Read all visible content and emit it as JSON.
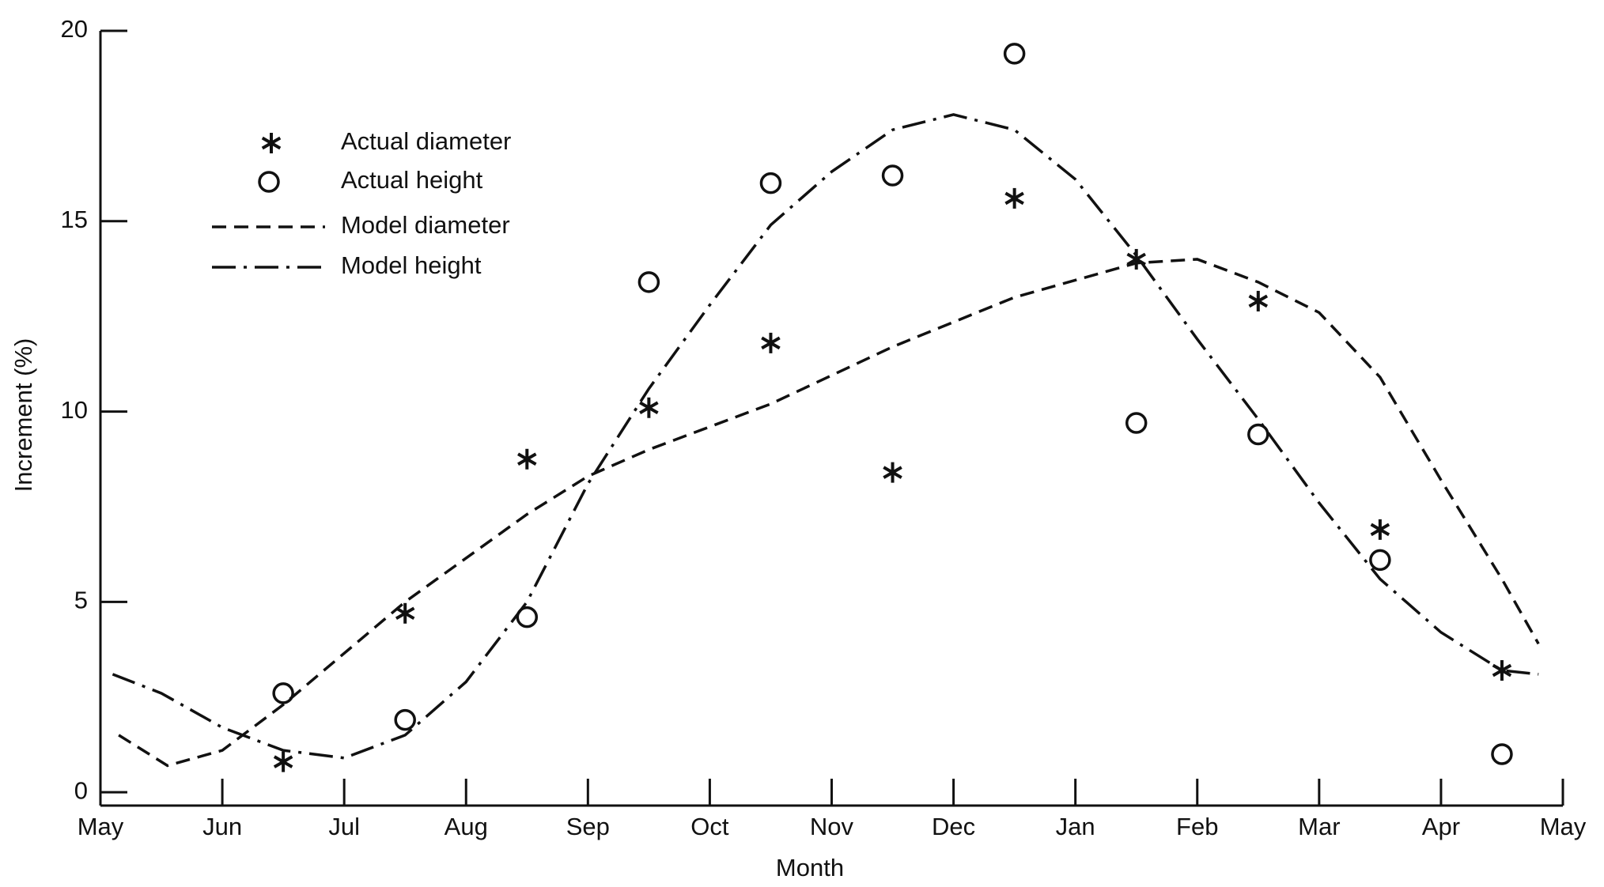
{
  "chart_data": {
    "type": "scatter-line",
    "x_label": "Month",
    "y_label": "Increment (%)",
    "xlim": [
      0,
      12
    ],
    "ylim": [
      -0.35,
      20
    ],
    "xticks": [
      {
        "value": 0,
        "label": "May"
      },
      {
        "value": 1,
        "label": "Jun"
      },
      {
        "value": 2,
        "label": "Jul"
      },
      {
        "value": 3,
        "label": "Aug"
      },
      {
        "value": 4,
        "label": "Sep"
      },
      {
        "value": 5,
        "label": "Oct"
      },
      {
        "value": 6,
        "label": "Nov"
      },
      {
        "value": 7,
        "label": "Dec"
      },
      {
        "value": 8,
        "label": "Jan"
      },
      {
        "value": 9,
        "label": "Feb"
      },
      {
        "value": 10,
        "label": "Mar"
      },
      {
        "value": 11,
        "label": "Apr"
      },
      {
        "value": 12,
        "label": "May"
      }
    ],
    "yticks": [
      0,
      5,
      10,
      15,
      20
    ],
    "series": [
      {
        "name": "Actual diameter",
        "marker": "star",
        "color": "#111111",
        "x": [
          1.5,
          2.5,
          3.5,
          4.5,
          5.5,
          6.5,
          7.5,
          8.5,
          9.5,
          10.5,
          11.5
        ],
        "values": [
          0.8,
          4.7,
          8.75,
          10.1,
          11.8,
          8.4,
          15.6,
          14.0,
          12.9,
          6.9,
          3.2
        ]
      },
      {
        "name": "Actual height",
        "marker": "circle",
        "color": "#111111",
        "x": [
          1.5,
          2.5,
          3.5,
          4.5,
          5.5,
          6.5,
          7.5,
          8.5,
          9.5,
          10.5,
          11.5
        ],
        "values": [
          2.6,
          1.9,
          4.6,
          13.4,
          16.0,
          16.2,
          19.4,
          9.7,
          9.4,
          6.1,
          1.0
        ]
      },
      {
        "name": "Model diameter",
        "dash": "dashed",
        "color": "#111111",
        "x": [
          0.15,
          0.55,
          1.0,
          1.5,
          2.5,
          3.5,
          4.0,
          4.5,
          5.5,
          6.5,
          7.5,
          8.5,
          9.0,
          9.5,
          10.0,
          10.5,
          11.0,
          11.5,
          11.8
        ],
        "values": [
          1.5,
          0.7,
          1.1,
          2.3,
          5.0,
          7.3,
          8.3,
          9.0,
          10.2,
          11.7,
          13.0,
          13.9,
          14.0,
          13.4,
          12.6,
          10.9,
          8.2,
          5.6,
          3.9
        ]
      },
      {
        "name": "Model height",
        "dash": "dashdot",
        "color": "#111111",
        "x": [
          0.1,
          0.5,
          1.0,
          1.5,
          2.0,
          2.5,
          3.0,
          3.5,
          4.0,
          4.5,
          5.0,
          5.5,
          6.0,
          6.5,
          7.0,
          7.5,
          8.0,
          8.5,
          9.0,
          9.5,
          10.0,
          10.5,
          11.0,
          11.5,
          11.8
        ],
        "values": [
          3.1,
          2.6,
          1.7,
          1.1,
          0.9,
          1.5,
          2.9,
          5.0,
          8.1,
          10.6,
          12.8,
          14.9,
          16.3,
          17.4,
          17.8,
          17.4,
          16.1,
          14.1,
          11.9,
          9.8,
          7.6,
          5.6,
          4.2,
          3.2,
          3.1
        ]
      }
    ]
  }
}
